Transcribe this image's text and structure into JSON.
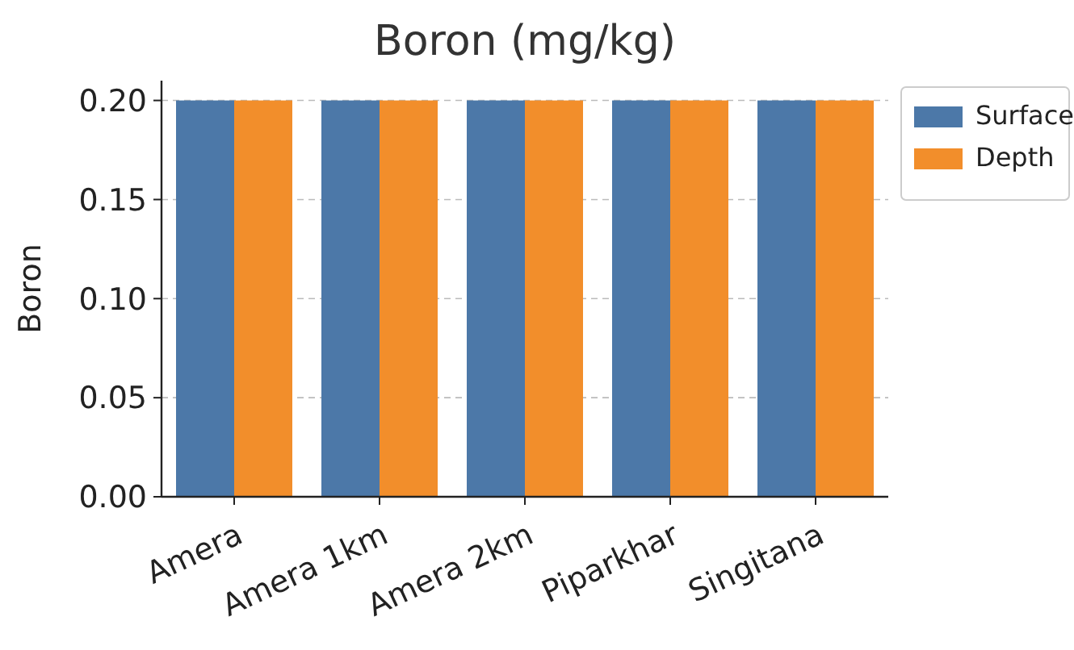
{
  "chart_data": {
    "type": "bar",
    "title": "Boron (mg/kg)",
    "ylabel": "Boron",
    "categories": [
      "Amera",
      "Amera 1km",
      "Amera 2km",
      "Piparkhar",
      "Singitana"
    ],
    "series": [
      {
        "name": "Surface",
        "color": "#4c78a8",
        "values": [
          0.2,
          0.2,
          0.2,
          0.2,
          0.2
        ]
      },
      {
        "name": "Depth",
        "color": "#f28e2b",
        "values": [
          0.2,
          0.2,
          0.2,
          0.2,
          0.2
        ]
      }
    ],
    "ylim": [
      0,
      0.21
    ],
    "yticks": [
      {
        "value": 0,
        "label": "0.00"
      },
      {
        "value": 0.05,
        "label": "0.05"
      },
      {
        "value": 0.1,
        "label": "0.10"
      },
      {
        "value": 0.15,
        "label": "0.15"
      },
      {
        "value": 0.2,
        "label": "0.20"
      }
    ],
    "grid": "y",
    "legend": "right"
  }
}
